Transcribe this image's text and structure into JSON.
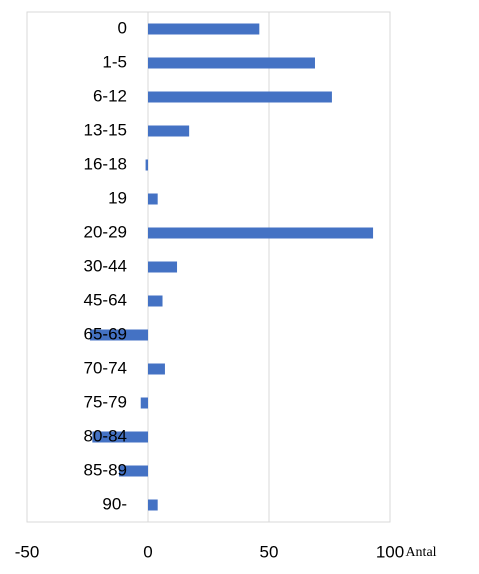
{
  "chart_data": {
    "type": "barh",
    "categories": [
      "0",
      "1-5",
      "6-12",
      "13-15",
      "16-18",
      "19",
      "20-29",
      "30-44",
      "45-64",
      "65-69",
      "70-74",
      "75-79",
      "80-84",
      "85-89",
      "90-"
    ],
    "values": [
      46,
      69,
      76,
      17,
      -1,
      4,
      93,
      12,
      6,
      -24,
      7,
      -3,
      -23,
      -12,
      4
    ],
    "color": "#4472c4",
    "x_label": "Antal",
    "xlim": [
      -50,
      100
    ],
    "xticks": [
      -50,
      0,
      50,
      100
    ],
    "grid": true
  }
}
